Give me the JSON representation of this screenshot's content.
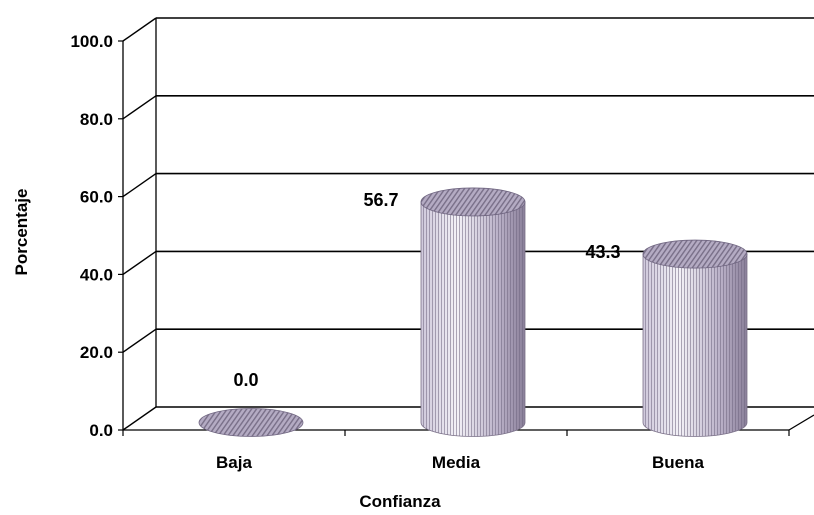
{
  "chart_data": {
    "type": "bar",
    "style": "3d-cylinder",
    "categories": [
      "Baja",
      "Media",
      "Buena"
    ],
    "values": [
      0.0,
      56.7,
      43.3
    ],
    "data_labels": [
      "0.0",
      "56.7",
      "43.3"
    ],
    "title": "",
    "xlabel": "Confianza",
    "ylabel": "Porcentaje",
    "ylim": [
      0,
      100
    ],
    "yticks": [
      "0.0",
      "20.0",
      "40.0",
      "60.0",
      "80.0",
      "100.0"
    ],
    "grid": true,
    "legend": "none",
    "colors": {
      "bar_light": "#e8e4f0",
      "bar_dark": "#8a7f99",
      "stripe": "#6f6580",
      "grid": "#000000"
    }
  }
}
